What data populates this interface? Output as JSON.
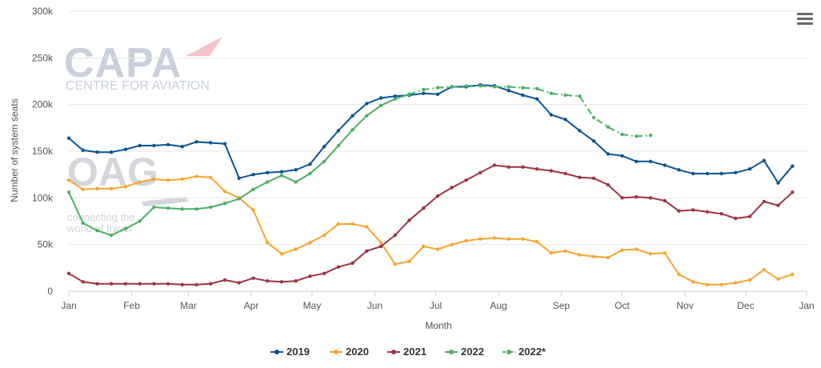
{
  "chart_data": {
    "type": "line",
    "title": "",
    "xlabel": "Month",
    "ylabel": "Number of system seats",
    "x_ticks": [
      "Jan",
      "Feb",
      "Mar",
      "Apr",
      "May",
      "Jun",
      "Jul",
      "Aug",
      "Sep",
      "Oct",
      "Nov",
      "Dec",
      "Jan"
    ],
    "y_ticks": [
      "0",
      "50k",
      "100k",
      "150k",
      "200k",
      "250k",
      "300k"
    ],
    "ylim": [
      0,
      300000
    ],
    "x_unit": "week of year",
    "grid": true,
    "legend_position": "bottom",
    "series": [
      {
        "name": "2019",
        "color": "#0b5394",
        "dashed": false,
        "points": [
          [
            1,
            164000
          ],
          [
            2,
            151000
          ],
          [
            3,
            149000
          ],
          [
            4,
            149000
          ],
          [
            5,
            152000
          ],
          [
            6,
            156000
          ],
          [
            7,
            156000
          ],
          [
            8,
            157000
          ],
          [
            9,
            155000
          ],
          [
            10,
            160000
          ],
          [
            11,
            159000
          ],
          [
            12,
            158000
          ],
          [
            13,
            121000
          ],
          [
            14,
            125000
          ],
          [
            15,
            127000
          ],
          [
            16,
            128000
          ],
          [
            17,
            130000
          ],
          [
            18,
            136000
          ],
          [
            19,
            155000
          ],
          [
            20,
            172000
          ],
          [
            21,
            188000
          ],
          [
            22,
            201000
          ],
          [
            23,
            207000
          ],
          [
            24,
            209000
          ],
          [
            25,
            210000
          ],
          [
            26,
            212000
          ],
          [
            27,
            211000
          ],
          [
            28,
            219000
          ],
          [
            29,
            219000
          ],
          [
            30,
            221000
          ],
          [
            31,
            220000
          ],
          [
            32,
            215000
          ],
          [
            33,
            210000
          ],
          [
            34,
            206000
          ],
          [
            35,
            189000
          ],
          [
            36,
            184000
          ],
          [
            37,
            172000
          ],
          [
            38,
            161000
          ],
          [
            39,
            147000
          ],
          [
            40,
            145000
          ],
          [
            41,
            139000
          ],
          [
            42,
            139000
          ],
          [
            43,
            135000
          ],
          [
            44,
            130000
          ],
          [
            45,
            126000
          ],
          [
            46,
            126000
          ],
          [
            47,
            126000
          ],
          [
            48,
            127000
          ],
          [
            49,
            131000
          ],
          [
            50,
            140000
          ],
          [
            51,
            116000
          ],
          [
            52,
            134000
          ]
        ]
      },
      {
        "name": "2020",
        "color": "#f5a52f",
        "dashed": false,
        "points": [
          [
            1,
            119000
          ],
          [
            2,
            109000
          ],
          [
            3,
            110000
          ],
          [
            4,
            110000
          ],
          [
            5,
            112000
          ],
          [
            6,
            117000
          ],
          [
            7,
            120000
          ],
          [
            8,
            119000
          ],
          [
            9,
            120000
          ],
          [
            10,
            123000
          ],
          [
            11,
            122000
          ],
          [
            12,
            107000
          ],
          [
            13,
            100000
          ],
          [
            14,
            87000
          ],
          [
            15,
            52000
          ],
          [
            16,
            40000
          ],
          [
            17,
            45000
          ],
          [
            18,
            52000
          ],
          [
            19,
            60000
          ],
          [
            20,
            72000
          ],
          [
            21,
            72000
          ],
          [
            22,
            69000
          ],
          [
            23,
            52000
          ],
          [
            24,
            29000
          ],
          [
            25,
            32000
          ],
          [
            26,
            48000
          ],
          [
            27,
            45000
          ],
          [
            28,
            50000
          ],
          [
            29,
            54000
          ],
          [
            30,
            56000
          ],
          [
            31,
            57000
          ],
          [
            32,
            56000
          ],
          [
            33,
            56000
          ],
          [
            34,
            53000
          ],
          [
            35,
            41000
          ],
          [
            36,
            43000
          ],
          [
            37,
            39000
          ],
          [
            38,
            37000
          ],
          [
            39,
            36000
          ],
          [
            40,
            44000
          ],
          [
            41,
            45000
          ],
          [
            42,
            40000
          ],
          [
            43,
            41000
          ],
          [
            44,
            18000
          ],
          [
            45,
            10000
          ],
          [
            46,
            7000
          ],
          [
            47,
            7000
          ],
          [
            48,
            9000
          ],
          [
            49,
            12000
          ],
          [
            50,
            23000
          ],
          [
            51,
            13000
          ],
          [
            52,
            18000
          ]
        ]
      },
      {
        "name": "2021",
        "color": "#9e3246",
        "dashed": false,
        "points": [
          [
            1,
            19000
          ],
          [
            2,
            10000
          ],
          [
            3,
            8000
          ],
          [
            4,
            8000
          ],
          [
            5,
            8000
          ],
          [
            6,
            8000
          ],
          [
            7,
            8000
          ],
          [
            8,
            8000
          ],
          [
            9,
            7000
          ],
          [
            10,
            7000
          ],
          [
            11,
            8000
          ],
          [
            12,
            12000
          ],
          [
            13,
            9000
          ],
          [
            14,
            14000
          ],
          [
            15,
            11000
          ],
          [
            16,
            10000
          ],
          [
            17,
            11000
          ],
          [
            18,
            16000
          ],
          [
            19,
            19000
          ],
          [
            20,
            26000
          ],
          [
            21,
            30000
          ],
          [
            22,
            43000
          ],
          [
            23,
            48000
          ],
          [
            24,
            60000
          ],
          [
            25,
            76000
          ],
          [
            26,
            89000
          ],
          [
            27,
            102000
          ],
          [
            28,
            111000
          ],
          [
            29,
            119000
          ],
          [
            30,
            127000
          ],
          [
            31,
            135000
          ],
          [
            32,
            133000
          ],
          [
            33,
            133000
          ],
          [
            34,
            131000
          ],
          [
            35,
            129000
          ],
          [
            36,
            126000
          ],
          [
            37,
            122000
          ],
          [
            38,
            121000
          ],
          [
            39,
            114000
          ],
          [
            40,
            100000
          ],
          [
            41,
            101000
          ],
          [
            42,
            100000
          ],
          [
            43,
            97000
          ],
          [
            44,
            86000
          ],
          [
            45,
            87000
          ],
          [
            46,
            85000
          ],
          [
            47,
            83000
          ],
          [
            48,
            78000
          ],
          [
            49,
            80000
          ],
          [
            50,
            96000
          ],
          [
            51,
            92000
          ],
          [
            52,
            106000
          ]
        ]
      },
      {
        "name": "2022",
        "color": "#4caf64",
        "dashed": false,
        "points": [
          [
            1,
            106000
          ],
          [
            2,
            73000
          ],
          [
            3,
            65000
          ],
          [
            4,
            60000
          ],
          [
            5,
            67000
          ],
          [
            6,
            75000
          ],
          [
            7,
            90000
          ],
          [
            8,
            89000
          ],
          [
            9,
            88000
          ],
          [
            10,
            88000
          ],
          [
            11,
            90000
          ],
          [
            12,
            94000
          ],
          [
            13,
            99000
          ],
          [
            14,
            109000
          ],
          [
            15,
            117000
          ],
          [
            16,
            124000
          ],
          [
            17,
            117000
          ],
          [
            18,
            126000
          ],
          [
            19,
            139000
          ],
          [
            20,
            156000
          ],
          [
            21,
            173000
          ],
          [
            22,
            188000
          ],
          [
            23,
            199000
          ],
          [
            24,
            206000
          ],
          [
            25,
            211000
          ]
        ]
      },
      {
        "name": "2022*",
        "color": "#4caf64",
        "dashed": true,
        "points": [
          [
            25,
            211000
          ],
          [
            26,
            216000
          ],
          [
            27,
            218000
          ],
          [
            28,
            219000
          ],
          [
            29,
            220000
          ],
          [
            30,
            220000
          ],
          [
            31,
            219000
          ],
          [
            32,
            219000
          ],
          [
            33,
            218000
          ],
          [
            34,
            217000
          ],
          [
            35,
            212000
          ],
          [
            36,
            210000
          ],
          [
            37,
            209000
          ],
          [
            38,
            186000
          ],
          [
            39,
            176000
          ],
          [
            40,
            168000
          ],
          [
            41,
            166000
          ],
          [
            42,
            167000
          ]
        ]
      }
    ]
  },
  "watermarks": {
    "capa_title": "CAPA",
    "capa_subtitle": "CENTRE FOR AVIATION",
    "oag_title": "OAG",
    "oag_tagline_1": "connecting the",
    "oag_tagline_2": "world of travel"
  },
  "toolbar": {
    "menu_icon": "hamburger-menu-icon"
  }
}
